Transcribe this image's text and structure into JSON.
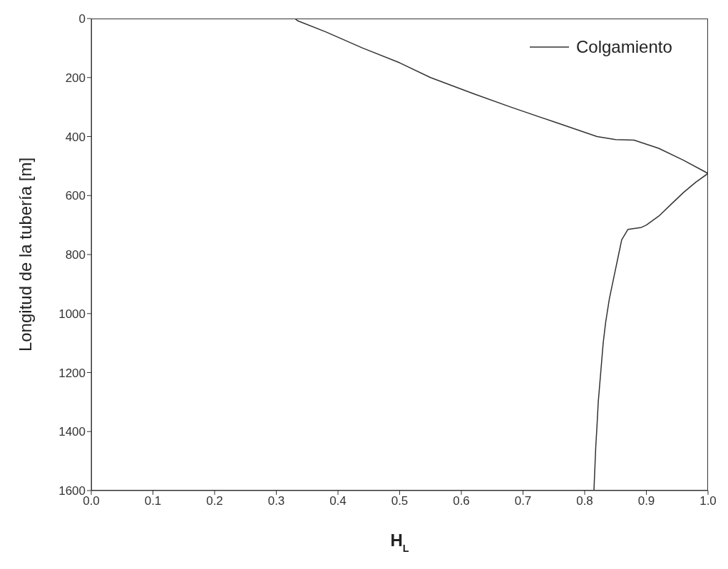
{
  "chart_data": {
    "type": "line",
    "xlabel": "H$_{L}$",
    "ylabel": "Longitud de la tubería [m]",
    "series": [
      {
        "name": "Colgamiento",
        "color": "#333333",
        "x": [
          0.33,
          0.335,
          0.38,
          0.44,
          0.5,
          0.55,
          0.62,
          0.68,
          0.75,
          0.82,
          0.85,
          0.88,
          0.92,
          0.96,
          1.0,
          0.98,
          0.96,
          0.94,
          0.92,
          0.9,
          0.892,
          0.87,
          0.86,
          0.855,
          0.848,
          0.84,
          0.834,
          0.83,
          0.826,
          0.822,
          0.82,
          0.818,
          0.815
        ],
        "values": [
          0,
          8,
          45,
          100,
          150,
          200,
          255,
          300,
          350,
          400,
          410,
          412,
          440,
          480,
          525,
          555,
          590,
          630,
          670,
          700,
          708,
          715,
          750,
          800,
          870,
          950,
          1030,
          1100,
          1200,
          1300,
          1380,
          1450,
          1600
        ]
      }
    ],
    "xlim": [
      0,
      1
    ],
    "xticks": [
      {
        "value": 0,
        "label": "0.0"
      },
      {
        "value": 0.1,
        "label": "0.1"
      },
      {
        "value": 0.2,
        "label": "0.2"
      },
      {
        "value": 0.3,
        "label": "0.3"
      },
      {
        "value": 0.4,
        "label": "0.4"
      },
      {
        "value": 0.5,
        "label": "0.5"
      },
      {
        "value": 0.6,
        "label": "0.6"
      },
      {
        "value": 0.7,
        "label": "0.7"
      },
      {
        "value": 0.8,
        "label": "0.8"
      },
      {
        "value": 0.9,
        "label": "0.9"
      },
      {
        "value": 1,
        "label": "1.0"
      }
    ],
    "ylim": [
      1600,
      0
    ],
    "yticks": [
      0,
      200,
      400,
      600,
      800,
      1000,
      1200,
      1400,
      1600
    ],
    "grid": false,
    "legend": "top right",
    "marker": "none",
    "line_style": "solid"
  }
}
